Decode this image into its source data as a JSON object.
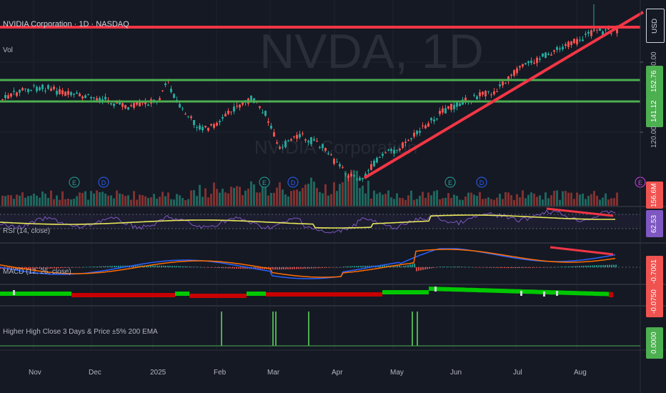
{
  "header": {
    "symbol_title": "NVIDIA Corporation · 1D · NASDAQ",
    "vol_label": "Vol"
  },
  "watermark": {
    "symbol": "NVDA, 1D",
    "name": "NVIDIA Corporation"
  },
  "price_axis": {
    "currency": "USD",
    "ticks": [
      "160.00",
      "120.00"
    ],
    "tags": {
      "upper_green": "152.76",
      "lower_green": "141.12",
      "volume": "156.6M"
    }
  },
  "indicators": {
    "rsi": {
      "label": "RSI (14, close)",
      "value": "62.53"
    },
    "macd": {
      "label": "MACD (12, 26, close)",
      "value_a": "-0.7001",
      "value_b": "-0.0750"
    },
    "signal": {
      "label": "Higher High Close 3 Days & Price ±5% 200 EMA",
      "value": "0.0000"
    }
  },
  "time_axis": [
    "Nov",
    "Dec",
    "2025",
    "Feb",
    "Mar",
    "Apr",
    "May",
    "Jun",
    "Jul",
    "Aug"
  ],
  "markers": {
    "earnings": "E",
    "dividend": "D"
  },
  "colors": {
    "up": "#26a69a",
    "down": "#ef5350",
    "green_line": "#4caf50",
    "red_line": "#f23645",
    "rsi": "#7e57c2",
    "rsi_ma": "#e8e85a",
    "macd": "#2962ff",
    "macd_signal": "#ff6d00",
    "trend_up": "#00c800",
    "trend_down": "#c80000"
  },
  "chart_data": {
    "type": "candlestick",
    "x_range": [
      "2024-10-24",
      "2025-08-22"
    ],
    "y_range": [
      92,
      190
    ],
    "horizontal_levels": [
      {
        "color": "red",
        "value": 181.5
      },
      {
        "color": "green",
        "value": 152.76
      },
      {
        "color": "green",
        "value": 141.12
      }
    ],
    "trendline": {
      "from": [
        "2025-04-07",
        94.5
      ],
      "to": [
        "2025-08-22",
        188
      ]
    },
    "closes_approx": [
      140,
      138,
      143,
      145,
      148,
      146,
      144,
      147,
      142,
      140,
      138,
      134,
      130,
      136,
      138,
      128,
      120,
      118,
      110,
      108,
      104,
      98,
      112,
      114,
      120,
      125,
      135,
      140,
      145,
      152,
      155,
      158,
      165,
      172,
      176,
      180,
      178,
      182,
      180
    ]
  }
}
